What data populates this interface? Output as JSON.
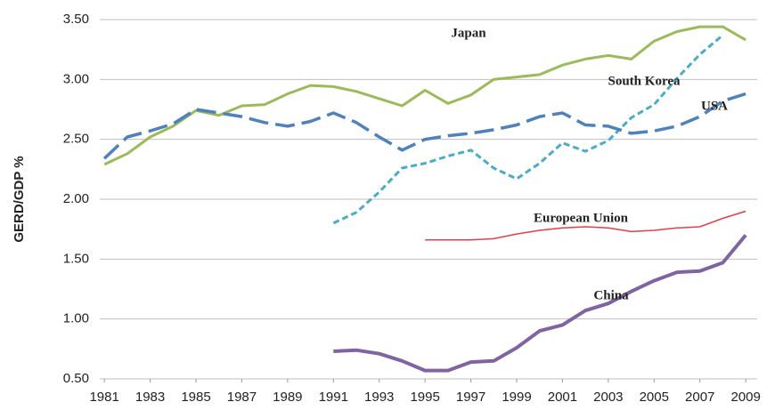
{
  "chart_data": {
    "type": "line",
    "y_label": "GERD/GDP %",
    "x": [
      1981,
      1982,
      1983,
      1984,
      1985,
      1986,
      1987,
      1988,
      1989,
      1990,
      1991,
      1992,
      1993,
      1994,
      1995,
      1996,
      1997,
      1998,
      1999,
      2000,
      2001,
      2002,
      2003,
      2004,
      2005,
      2006,
      2007,
      2008,
      2009
    ],
    "series": [
      {
        "name": "Japan",
        "color": "#9bbb59",
        "style": "solid",
        "width": 3,
        "values": [
          2.29,
          2.38,
          2.52,
          2.61,
          2.74,
          2.7,
          2.78,
          2.79,
          2.88,
          2.95,
          2.94,
          2.9,
          2.84,
          2.78,
          2.91,
          2.8,
          2.87,
          3.0,
          3.02,
          3.04,
          3.12,
          3.17,
          3.2,
          3.17,
          3.32,
          3.4,
          3.44,
          3.44,
          3.33
        ]
      },
      {
        "name": "South Korea",
        "color": "#4bacc6",
        "style": "dotted",
        "width": 3,
        "values": [
          null,
          null,
          null,
          null,
          null,
          null,
          null,
          null,
          null,
          null,
          1.8,
          1.89,
          2.06,
          2.26,
          2.3,
          2.36,
          2.41,
          2.26,
          2.17,
          2.3,
          2.47,
          2.4,
          2.49,
          2.68,
          2.79,
          3.01,
          3.21,
          3.37,
          null
        ]
      },
      {
        "name": "USA",
        "color": "#4f81bd",
        "style": "dashed",
        "width": 3.5,
        "values": [
          2.34,
          2.52,
          2.57,
          2.63,
          2.75,
          2.72,
          2.69,
          2.64,
          2.61,
          2.65,
          2.72,
          2.64,
          2.52,
          2.41,
          2.5,
          2.53,
          2.55,
          2.58,
          2.62,
          2.69,
          2.72,
          2.62,
          2.61,
          2.55,
          2.57,
          2.61,
          2.69,
          2.82,
          2.88
        ]
      },
      {
        "name": "European Union",
        "color": "#e0404a",
        "style": "solid",
        "width": 1.5,
        "values": [
          null,
          null,
          null,
          null,
          null,
          null,
          null,
          null,
          null,
          null,
          null,
          null,
          null,
          null,
          1.66,
          1.66,
          1.66,
          1.67,
          1.71,
          1.74,
          1.76,
          1.77,
          1.76,
          1.73,
          1.74,
          1.76,
          1.77,
          1.84,
          1.9
        ]
      },
      {
        "name": "China",
        "color": "#8064a2",
        "style": "solid",
        "width": 4,
        "values": [
          null,
          null,
          null,
          null,
          null,
          null,
          null,
          null,
          null,
          null,
          0.73,
          0.74,
          0.71,
          0.65,
          0.57,
          0.57,
          0.64,
          0.65,
          0.76,
          0.9,
          0.95,
          1.07,
          1.13,
          1.23,
          1.32,
          1.39,
          1.4,
          1.47,
          1.7
        ]
      }
    ],
    "xlim": [
      1980.8,
      2009.5
    ],
    "xticks": [
      1981,
      1983,
      1985,
      1987,
      1989,
      1991,
      1993,
      1995,
      1997,
      1999,
      2001,
      2003,
      2005,
      2007,
      2009
    ],
    "ylim": [
      0.5,
      3.5
    ],
    "yticks": [
      {
        "value": 0.5,
        "label": "0.50"
      },
      {
        "value": 1,
        "label": "1.00"
      },
      {
        "value": 1.5,
        "label": "1.50"
      },
      {
        "value": 2,
        "label": "2.00"
      },
      {
        "value": 2.5,
        "label": "2.50"
      },
      {
        "value": 3,
        "label": "3.00"
      },
      {
        "value": 3.5,
        "label": "3.50"
      }
    ],
    "grid": true
  }
}
